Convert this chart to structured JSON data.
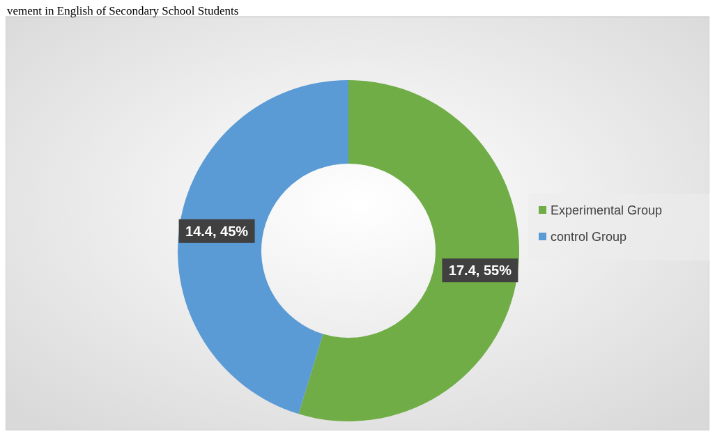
{
  "chart_data": {
    "type": "donut",
    "title": "vement in English of Secondary School Students",
    "categories": [
      "Experimental Group",
      "control Group"
    ],
    "values": [
      17.4,
      14.4
    ],
    "colors": [
      "#70ad47",
      "#5b9bd5"
    ],
    "value_labels": [
      "17.4, 55%",
      "14.4, 45%"
    ],
    "legend": "right"
  }
}
